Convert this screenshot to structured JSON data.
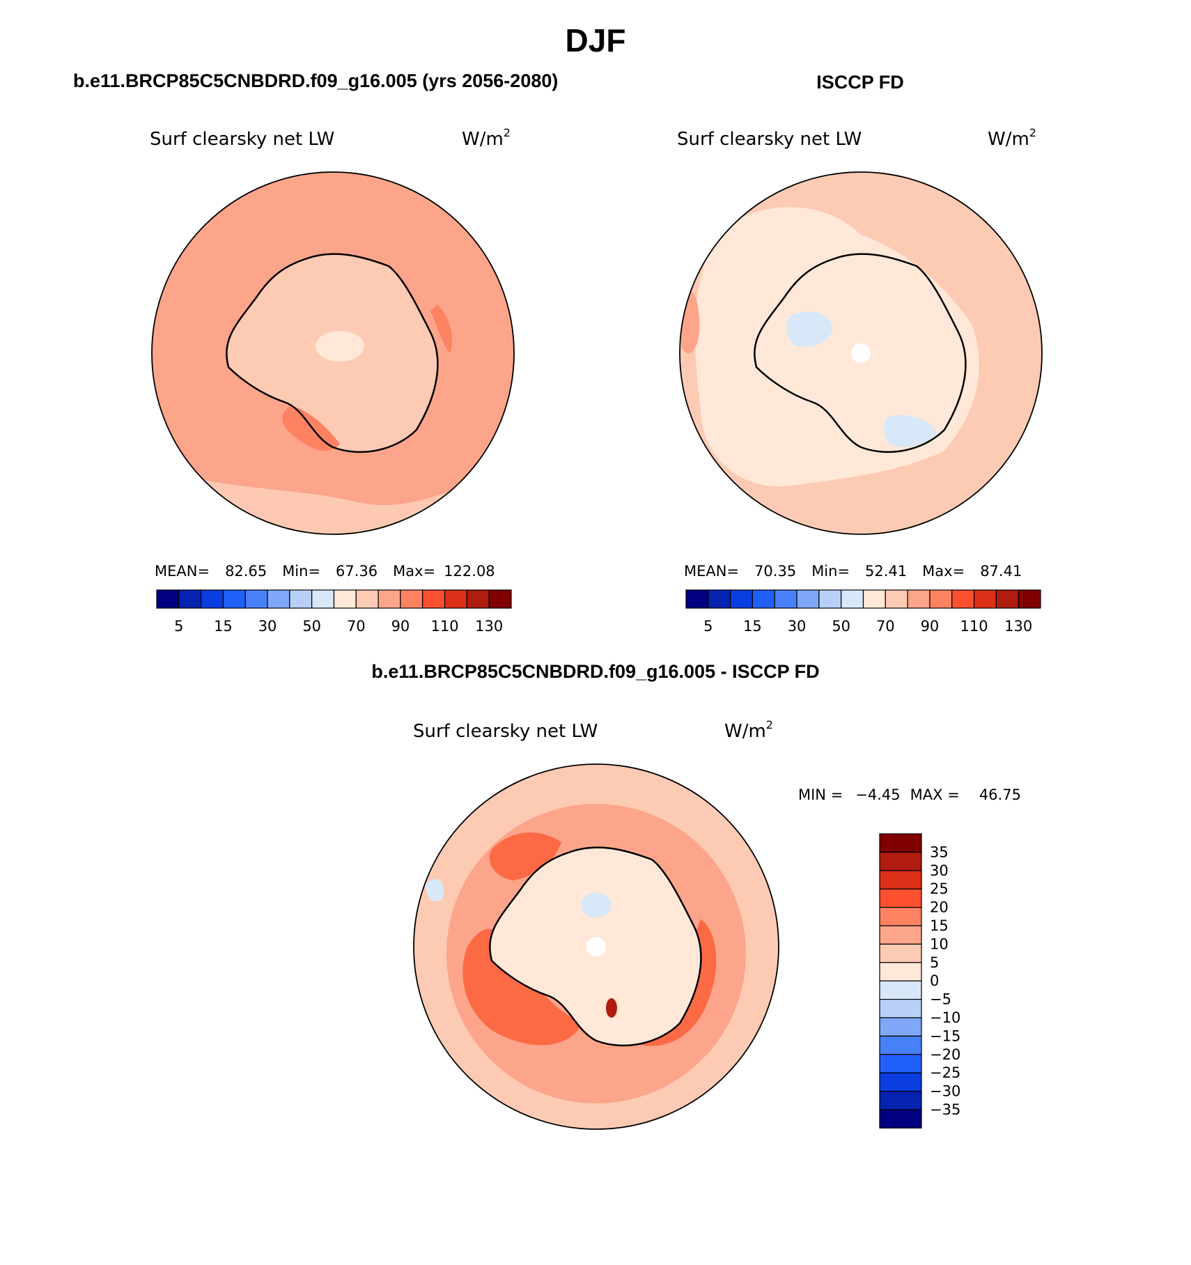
{
  "figure": {
    "season": "DJF",
    "diff_title": "b.e11.BRCP85C5CNBDRD.f09_g16.005 - ISCCP FD"
  },
  "panels": [
    {
      "case_title": "b.e11.BRCP85C5CNBDRD.f09_g16.005 (yrs 2056-2080)",
      "left_string": "Surf clearsky net LW",
      "units_base": "W/m",
      "units_sup": "2",
      "stats": {
        "mean_label": "MEAN=",
        "mean": "82.65",
        "min_label": "Min=",
        "min": "67.36",
        "max_label": "Max=",
        "max": "122.08"
      },
      "ocean_color": "#fca58a",
      "land_color": "#fdcab4",
      "patch_color": "#fc8262",
      "light_color": "#ffe8d8"
    },
    {
      "case_title": "ISCCP FD",
      "left_string": "Surf clearsky net LW",
      "units_base": "W/m",
      "units_sup": "2",
      "stats": {
        "mean_label": "MEAN=",
        "mean": "70.35",
        "min_label": "Min=",
        "min": "52.41",
        "max_label": "Max=",
        "max": "87.41"
      },
      "ocean_color": "#fdcab4",
      "land_color": "#ffe8d8",
      "patch_color": "#fca58a",
      "light_color": "#d8e8f8"
    }
  ],
  "diff_panel": {
    "left_string": "Surf clearsky net LW",
    "units_base": "W/m",
    "units_sup": "2",
    "minmax": {
      "min_label": "MIN =",
      "min": "−4.45",
      "max_label": "MAX =",
      "max": "46.75"
    },
    "base_color": "#fdcab4",
    "ring_color": "#fca58a",
    "strong_color": "#fc6a45",
    "land_color": "#ffe8d8",
    "blue_color": "#d8e8f8",
    "dark_color": "#b01c10"
  },
  "colorbars": {
    "abs_colors": [
      "#000080",
      "#0622b0",
      "#0a3ee0",
      "#2060f8",
      "#4880f8",
      "#80a8f8",
      "#b8d0f8",
      "#d8e8f8",
      "#ffe8d8",
      "#fdcab4",
      "#fca58a",
      "#fc8262",
      "#fc5030",
      "#dc3018",
      "#b01c10",
      "#800000"
    ],
    "abs_labels": [
      "5",
      "15",
      "30",
      "50",
      "70",
      "90",
      "110",
      "130"
    ],
    "diff_colors": [
      "#800000",
      "#b01c10",
      "#dc3018",
      "#fc5030",
      "#fc8262",
      "#fca58a",
      "#fdcab4",
      "#ffe8d8",
      "#d8e8f8",
      "#b8d0f8",
      "#80a8f8",
      "#4880f8",
      "#2060f8",
      "#0a3ee0",
      "#0622b0",
      "#000080"
    ],
    "diff_labels": [
      "35",
      "30",
      "25",
      "20",
      "15",
      "10",
      "5",
      "0",
      "−5",
      "−10",
      "−15",
      "−20",
      "−25",
      "−30",
      "−35"
    ]
  }
}
